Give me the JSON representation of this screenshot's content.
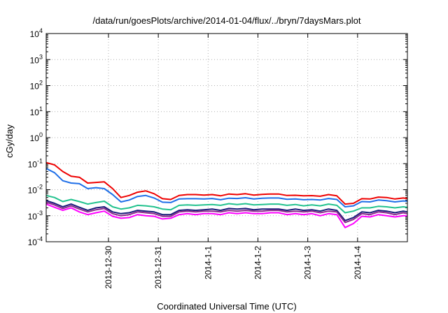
{
  "chart_data": {
    "type": "line",
    "title": "/data/run/goesPlots/archive/2014-01-04/flux/../bryn/7daysMars.plot",
    "xlabel": "Coordinated Universal Time (UTC)",
    "ylabel": "cGy/day",
    "y_scale": "log",
    "ylim_exponents": [
      -4,
      4
    ],
    "y_tick_base": "10",
    "y_tick_exponents": [
      "-4",
      "-3",
      "-2",
      "-1",
      "0",
      "1",
      "2",
      "3",
      "4"
    ],
    "xlim": [
      "2013-12-28T18:00",
      "2014-01-05T00:00"
    ],
    "x_ticks": [
      {
        "date": "2013-12-30T00:00",
        "label": "2013-12-30"
      },
      {
        "date": "2013-12-31T00:00",
        "label": "2013-12-31"
      },
      {
        "date": "2014-01-01T00:00",
        "label": "2014-1-1"
      },
      {
        "date": "2014-01-02T00:00",
        "label": "2014-1-2"
      },
      {
        "date": "2014-01-03T00:00",
        "label": "2014-1-3"
      },
      {
        "date": "2014-01-04T00:00",
        "label": "2014-1-4"
      }
    ],
    "grid": true,
    "legend": "none",
    "series_colors": [
      "#ee0000",
      "#1f6fe8",
      "#22c28e",
      "#1a1a7a",
      "#8a2b8a",
      "#ff00ff"
    ],
    "x": [
      "2013-12-28T18:00",
      "2013-12-28T22:00",
      "2013-12-29T02:00",
      "2013-12-29T06:00",
      "2013-12-29T10:00",
      "2013-12-29T14:00",
      "2013-12-29T18:00",
      "2013-12-29T22:00",
      "2013-12-30T02:00",
      "2013-12-30T06:00",
      "2013-12-30T10:00",
      "2013-12-30T14:00",
      "2013-12-30T18:00",
      "2013-12-30T22:00",
      "2013-12-31T02:00",
      "2013-12-31T06:00",
      "2013-12-31T10:00",
      "2013-12-31T14:00",
      "2013-12-31T18:00",
      "2013-12-31T22:00",
      "2014-01-01T02:00",
      "2014-01-01T06:00",
      "2014-01-01T10:00",
      "2014-01-01T14:00",
      "2014-01-01T18:00",
      "2014-01-01T22:00",
      "2014-01-02T02:00",
      "2014-01-02T06:00",
      "2014-01-02T10:00",
      "2014-01-02T14:00",
      "2014-01-02T18:00",
      "2014-01-02T22:00",
      "2014-01-03T02:00",
      "2014-01-03T06:00",
      "2014-01-03T10:00",
      "2014-01-03T14:00",
      "2014-01-03T18:00",
      "2014-01-03T22:00",
      "2014-01-04T02:00",
      "2014-01-04T06:00",
      "2014-01-04T10:00",
      "2014-01-04T14:00",
      "2014-01-04T18:00",
      "2014-01-04T22:00",
      "2014-01-05T00:00"
    ],
    "series": [
      {
        "values": [
          0.11,
          0.09,
          0.05,
          0.033,
          0.03,
          0.018,
          0.019,
          0.02,
          0.011,
          0.005,
          0.006,
          0.008,
          0.009,
          0.007,
          0.0045,
          0.0042,
          0.006,
          0.0065,
          0.0065,
          0.0062,
          0.0065,
          0.0058,
          0.0068,
          0.0065,
          0.007,
          0.0062,
          0.0066,
          0.0068,
          0.0068,
          0.006,
          0.0061,
          0.0058,
          0.0059,
          0.0056,
          0.0065,
          0.0058,
          0.0028,
          0.003,
          0.0045,
          0.0044,
          0.0052,
          0.005,
          0.0044,
          0.0048,
          0.0046
        ]
      },
      {
        "values": [
          0.065,
          0.045,
          0.022,
          0.018,
          0.017,
          0.011,
          0.012,
          0.011,
          0.0065,
          0.0034,
          0.004,
          0.0055,
          0.006,
          0.0048,
          0.0033,
          0.0032,
          0.0044,
          0.0045,
          0.0045,
          0.0044,
          0.0046,
          0.0041,
          0.0047,
          0.0046,
          0.0049,
          0.0044,
          0.0047,
          0.0048,
          0.0048,
          0.0043,
          0.0044,
          0.0041,
          0.0042,
          0.004,
          0.0046,
          0.0042,
          0.0022,
          0.0024,
          0.0035,
          0.0034,
          0.004,
          0.0038,
          0.0034,
          0.0037,
          0.0036
        ]
      },
      {
        "values": [
          0.006,
          0.005,
          0.0035,
          0.0042,
          0.0035,
          0.0028,
          0.0032,
          0.0036,
          0.0022,
          0.0018,
          0.002,
          0.0025,
          0.0024,
          0.0022,
          0.0018,
          0.0017,
          0.0025,
          0.0026,
          0.0025,
          0.0026,
          0.0027,
          0.0025,
          0.0029,
          0.0027,
          0.0029,
          0.0026,
          0.0027,
          0.0028,
          0.0028,
          0.0025,
          0.0027,
          0.0024,
          0.0026,
          0.0024,
          0.0028,
          0.0025,
          0.0013,
          0.0015,
          0.002,
          0.002,
          0.0023,
          0.0022,
          0.002,
          0.0022,
          0.0021
        ]
      },
      {
        "values": [
          0.0038,
          0.003,
          0.0022,
          0.0028,
          0.0021,
          0.0016,
          0.002,
          0.0022,
          0.0014,
          0.0012,
          0.0013,
          0.0016,
          0.0015,
          0.0014,
          0.0011,
          0.0011,
          0.0016,
          0.0017,
          0.0016,
          0.0017,
          0.0018,
          0.0016,
          0.0019,
          0.0018,
          0.0019,
          0.0017,
          0.0018,
          0.0018,
          0.0018,
          0.0016,
          0.0018,
          0.0016,
          0.0017,
          0.0015,
          0.0018,
          0.0016,
          0.00065,
          0.00085,
          0.0014,
          0.0013,
          0.0016,
          0.0015,
          0.0013,
          0.0015,
          0.0014
        ]
      },
      {
        "values": [
          0.0033,
          0.0026,
          0.0019,
          0.0024,
          0.0018,
          0.0014,
          0.0017,
          0.0019,
          0.0012,
          0.001,
          0.0011,
          0.0014,
          0.0013,
          0.0012,
          0.00095,
          0.00095,
          0.0014,
          0.0015,
          0.0014,
          0.0015,
          0.0015,
          0.0014,
          0.0016,
          0.0015,
          0.0016,
          0.0015,
          0.0015,
          0.0016,
          0.0016,
          0.0014,
          0.0015,
          0.0014,
          0.0015,
          0.0013,
          0.0015,
          0.0014,
          0.00055,
          0.00072,
          0.0012,
          0.0011,
          0.0014,
          0.0013,
          0.0011,
          0.0013,
          0.0012
        ]
      },
      {
        "values": [
          0.0028,
          0.0021,
          0.0016,
          0.002,
          0.0014,
          0.0011,
          0.0013,
          0.0015,
          0.00095,
          0.0008,
          0.00085,
          0.0011,
          0.001,
          0.00095,
          0.00075,
          0.0008,
          0.0011,
          0.0012,
          0.0011,
          0.0012,
          0.0012,
          0.0011,
          0.0013,
          0.0012,
          0.0013,
          0.0012,
          0.0012,
          0.0013,
          0.0013,
          0.0011,
          0.0012,
          0.0011,
          0.0012,
          0.001,
          0.0012,
          0.0011,
          0.00035,
          0.0005,
          0.00095,
          0.0009,
          0.0011,
          0.001,
          0.0009,
          0.001,
          0.001
        ]
      }
    ]
  }
}
